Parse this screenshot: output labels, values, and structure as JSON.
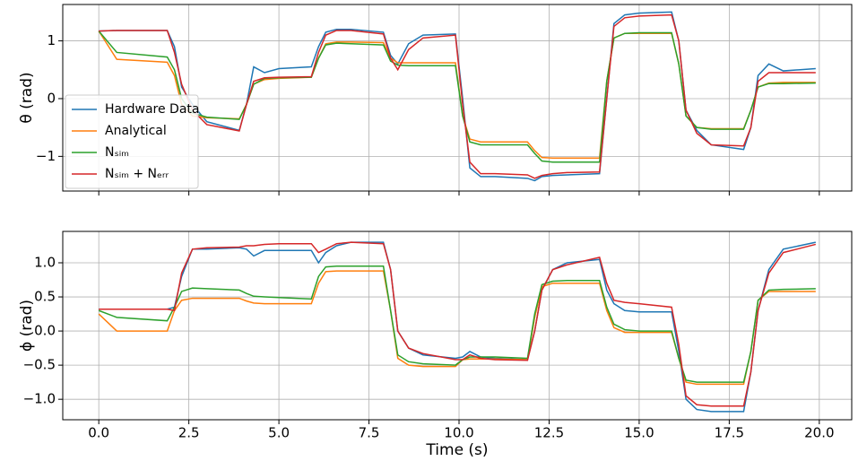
{
  "chart_data": [
    {
      "type": "line",
      "ylabel": "θ (rad)",
      "legend": "lower left",
      "grid": true,
      "xlim": [
        -1,
        20.9
      ],
      "ylim": [
        -1.6,
        1.63
      ],
      "xticks": [
        0,
        2.5,
        5,
        7.5,
        10,
        12.5,
        15,
        17.5,
        20
      ],
      "yticks": [
        {
          "value": -1,
          "label": "−1"
        },
        0,
        1
      ],
      "x": [
        0,
        0.5,
        1.9,
        2.1,
        2.3,
        2.6,
        3,
        3.9,
        4.1,
        4.3,
        4.6,
        5,
        5.9,
        6.1,
        6.3,
        6.6,
        7,
        7.9,
        8.1,
        8.3,
        8.6,
        9,
        9.9,
        10.1,
        10.3,
        10.6,
        11,
        11.9,
        12.1,
        12.3,
        12.6,
        13,
        13.9,
        14.1,
        14.3,
        14.6,
        15,
        15.9,
        16.1,
        16.3,
        16.6,
        17,
        17.9,
        18.1,
        18.3,
        18.6,
        19,
        19.9
      ],
      "series": [
        {
          "name": "Hardware Data",
          "color": "#1f77b4",
          "values": [
            1.17,
            1.18,
            1.18,
            0.9,
            0.2,
            -0.1,
            -0.4,
            -0.55,
            -0.1,
            0.55,
            0.45,
            0.52,
            0.55,
            0.9,
            1.15,
            1.2,
            1.2,
            1.15,
            0.75,
            0.6,
            0.95,
            1.1,
            1.12,
            0,
            -1.2,
            -1.35,
            -1.35,
            -1.38,
            -1.42,
            -1.35,
            -1.33,
            -1.32,
            -1.3,
            0,
            1.3,
            1.45,
            1.48,
            1.5,
            1,
            -0.2,
            -0.55,
            -0.8,
            -0.88,
            -0.5,
            0.4,
            0.6,
            0.48,
            0.52
          ]
        },
        {
          "name": "Analytical",
          "color": "#ff7f0e",
          "values": [
            1.17,
            0.68,
            0.63,
            0.4,
            -0.1,
            -0.3,
            -0.33,
            -0.35,
            -0.1,
            0.25,
            0.33,
            0.35,
            0.37,
            0.7,
            0.95,
            0.98,
            0.98,
            0.97,
            0.7,
            0.62,
            0.62,
            0.62,
            0.62,
            -0.3,
            -0.7,
            -0.75,
            -0.75,
            -0.75,
            -0.9,
            -1.02,
            -1.03,
            -1.03,
            -1.03,
            0.3,
            1.05,
            1.13,
            1.13,
            1.13,
            0.6,
            -0.3,
            -0.5,
            -0.52,
            -0.52,
            -0.2,
            0.2,
            0.27,
            0.28,
            0.28
          ]
        },
        {
          "name": "Nₛᵢₘ",
          "color": "#2ca02c",
          "values": [
            1.17,
            0.8,
            0.72,
            0.5,
            0,
            -0.25,
            -0.32,
            -0.36,
            -0.1,
            0.25,
            0.35,
            0.36,
            0.37,
            0.7,
            0.93,
            0.96,
            0.95,
            0.93,
            0.65,
            0.58,
            0.57,
            0.57,
            0.57,
            -0.3,
            -0.75,
            -0.8,
            -0.8,
            -0.8,
            -0.95,
            -1.08,
            -1.1,
            -1.1,
            -1.1,
            0.3,
            1.05,
            1.13,
            1.14,
            1.14,
            0.6,
            -0.3,
            -0.5,
            -0.53,
            -0.53,
            -0.2,
            0.2,
            0.26,
            0.26,
            0.27
          ]
        },
        {
          "name": "Nₛᵢₘ + Nₑᵣᵣ",
          "color": "#d62728",
          "values": [
            1.17,
            1.18,
            1.18,
            0.8,
            0.25,
            -0.2,
            -0.45,
            -0.56,
            -0.1,
            0.3,
            0.36,
            0.37,
            0.38,
            0.8,
            1.1,
            1.18,
            1.18,
            1.12,
            0.7,
            0.5,
            0.85,
            1.05,
            1.1,
            -0.1,
            -1.1,
            -1.3,
            -1.3,
            -1.32,
            -1.38,
            -1.33,
            -1.3,
            -1.28,
            -1.27,
            0,
            1.25,
            1.4,
            1.43,
            1.45,
            1,
            -0.2,
            -0.6,
            -0.8,
            -0.82,
            -0.5,
            0.3,
            0.45,
            0.45,
            0.45
          ]
        }
      ]
    },
    {
      "type": "line",
      "ylabel": "ϕ (rad)",
      "xlabel": "Time (s)",
      "grid": true,
      "xlim": [
        -1,
        20.9
      ],
      "ylim": [
        -1.3,
        1.46
      ],
      "xticks": [
        {
          "value": 0,
          "label": "0.0"
        },
        2.5,
        {
          "value": 5,
          "label": "5.0"
        },
        7.5,
        {
          "value": 10,
          "label": "10.0"
        },
        12.5,
        {
          "value": 15,
          "label": "15.0"
        },
        17.5,
        {
          "value": 20,
          "label": "20.0"
        }
      ],
      "yticks": [
        {
          "value": -1,
          "label": "−1.0"
        },
        {
          "value": -0.5,
          "label": "−0.5"
        },
        {
          "value": 0,
          "label": "0.0"
        },
        0.5,
        {
          "value": 1,
          "label": "1.0"
        }
      ],
      "x": [
        0,
        0.5,
        1.9,
        2.1,
        2.3,
        2.6,
        3,
        3.9,
        4.1,
        4.3,
        4.6,
        5,
        5.9,
        6.1,
        6.3,
        6.6,
        7,
        7.9,
        8.1,
        8.3,
        8.6,
        9,
        9.9,
        10.1,
        10.3,
        10.6,
        11,
        11.9,
        12.1,
        12.3,
        12.6,
        13,
        13.9,
        14.1,
        14.3,
        14.6,
        15,
        15.9,
        16.1,
        16.3,
        16.6,
        17,
        17.9,
        18.1,
        18.3,
        18.6,
        19,
        19.9
      ],
      "series": [
        {
          "color": "#1f77b4",
          "values": [
            0.32,
            0.32,
            0.32,
            0.35,
            0.8,
            1.2,
            1.2,
            1.22,
            1.2,
            1.1,
            1.18,
            1.18,
            1.18,
            1,
            1.15,
            1.25,
            1.3,
            1.3,
            0.9,
            0,
            -0.25,
            -0.35,
            -0.4,
            -0.38,
            -0.3,
            -0.38,
            -0.4,
            -0.42,
            0,
            0.6,
            0.9,
            1,
            1.05,
            0.6,
            0.4,
            0.3,
            0.28,
            0.28,
            -0.3,
            -1,
            -1.15,
            -1.18,
            -1.18,
            -0.6,
            0.3,
            0.9,
            1.2,
            1.3
          ]
        },
        {
          "color": "#ff7f0e",
          "values": [
            0.25,
            0,
            0,
            0.3,
            0.45,
            0.48,
            0.48,
            0.48,
            0.44,
            0.41,
            0.4,
            0.4,
            0.4,
            0.7,
            0.87,
            0.88,
            0.88,
            0.88,
            0.3,
            -0.4,
            -0.5,
            -0.52,
            -0.52,
            -0.42,
            -0.41,
            -0.41,
            -0.41,
            -0.42,
            0.2,
            0.65,
            0.7,
            0.7,
            0.7,
            0.3,
            0.05,
            -0.02,
            -0.02,
            -0.02,
            -0.4,
            -0.75,
            -0.78,
            -0.78,
            -0.78,
            -0.3,
            0.45,
            0.58,
            0.58,
            0.58
          ]
        },
        {
          "color": "#2ca02c",
          "values": [
            0.3,
            0.2,
            0.15,
            0.35,
            0.58,
            0.63,
            0.62,
            0.6,
            0.55,
            0.51,
            0.5,
            0.49,
            0.47,
            0.8,
            0.94,
            0.95,
            0.95,
            0.95,
            0.3,
            -0.35,
            -0.45,
            -0.48,
            -0.5,
            -0.42,
            -0.38,
            -0.38,
            -0.38,
            -0.4,
            0.25,
            0.68,
            0.73,
            0.74,
            0.74,
            0.35,
            0.1,
            0.02,
            0,
            0,
            -0.4,
            -0.72,
            -0.75,
            -0.75,
            -0.75,
            -0.3,
            0.45,
            0.6,
            0.61,
            0.62
          ]
        },
        {
          "color": "#d62728",
          "values": [
            0.32,
            0.32,
            0.32,
            0.3,
            0.85,
            1.2,
            1.22,
            1.23,
            1.25,
            1.25,
            1.27,
            1.28,
            1.28,
            1.15,
            1.2,
            1.28,
            1.3,
            1.28,
            0.9,
            0,
            -0.25,
            -0.33,
            -0.42,
            -0.42,
            -0.35,
            -0.4,
            -0.42,
            -0.43,
            0,
            0.6,
            0.9,
            0.97,
            1.08,
            0.7,
            0.45,
            0.42,
            0.4,
            0.35,
            -0.2,
            -0.95,
            -1.08,
            -1.1,
            -1.1,
            -0.6,
            0.3,
            0.85,
            1.15,
            1.27
          ]
        }
      ]
    }
  ]
}
